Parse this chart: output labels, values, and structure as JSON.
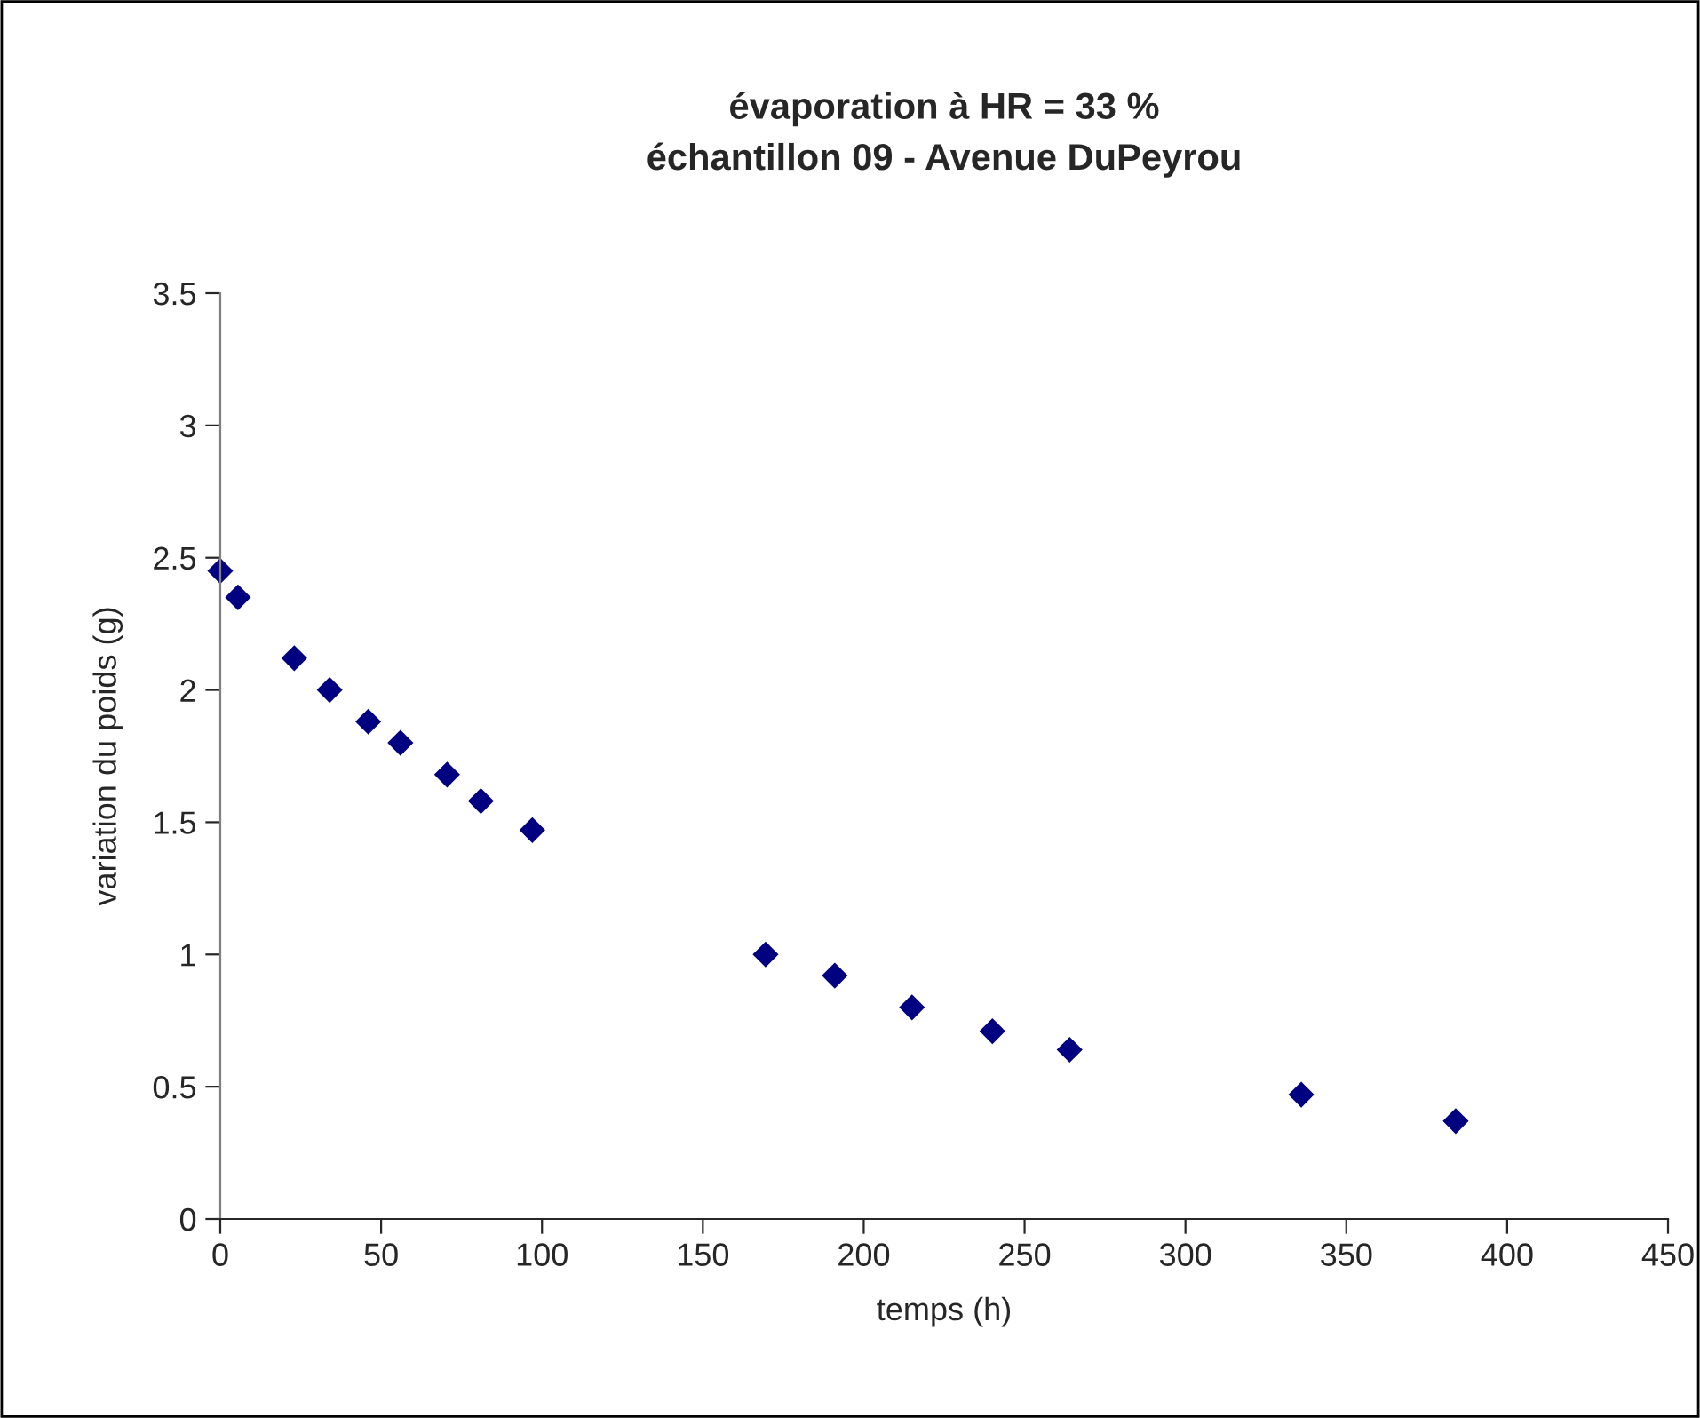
{
  "chart_data": {
    "type": "scatter",
    "title": "évaporation à HR = 33 %\néchantillon 09 - Avenue DuPeyrou",
    "xlabel": "temps (h)",
    "ylabel": "variation du poids (g)",
    "series": [
      {
        "color": "#000080",
        "x": [
          0,
          5.5,
          23,
          34,
          46,
          56,
          70.5,
          81,
          97,
          169.5,
          191,
          215,
          240,
          264,
          336,
          384
        ],
        "values": [
          2.45,
          2.35,
          2.12,
          2.0,
          1.88,
          1.8,
          1.68,
          1.58,
          1.47,
          1.0,
          0.92,
          0.8,
          0.71,
          0.64,
          0.47,
          0.37
        ]
      }
    ],
    "xlim": [
      0,
      450
    ],
    "xticks": [
      0,
      50,
      100,
      150,
      200,
      250,
      300,
      350,
      400,
      450
    ],
    "ylim": [
      0,
      3.5
    ],
    "yticks": [
      0,
      0.5,
      1,
      1.5,
      2,
      2.5,
      3,
      3.5
    ],
    "marker": "diamond",
    "grid": false
  }
}
